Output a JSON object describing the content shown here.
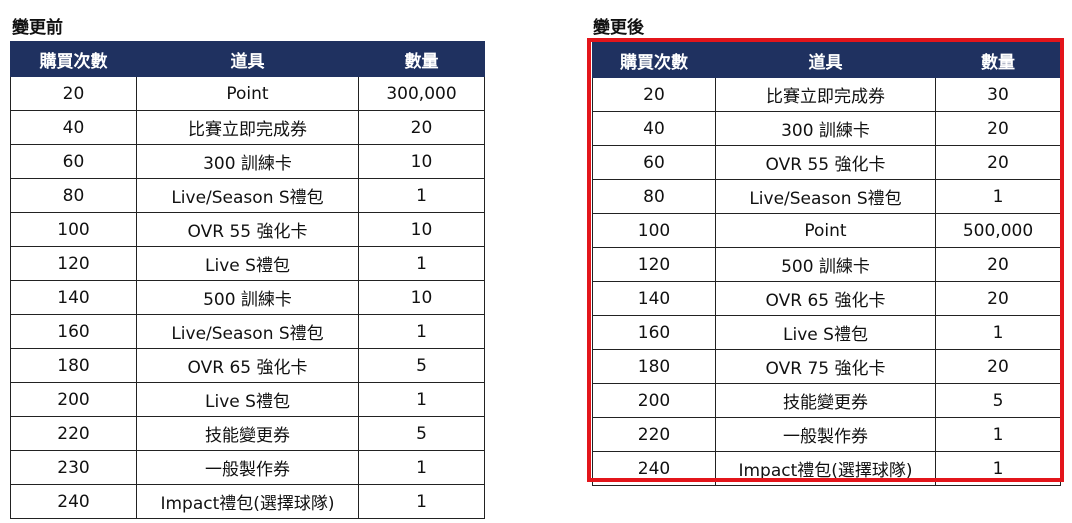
{
  "before": {
    "title": "變更前",
    "headers": [
      "購買次數",
      "道具",
      "數量"
    ],
    "rows": [
      [
        "20",
        "Point",
        "300,000"
      ],
      [
        "40",
        "比賽立即完成券",
        "20"
      ],
      [
        "60",
        "300 訓練卡",
        "10"
      ],
      [
        "80",
        "Live/Season S禮包",
        "1"
      ],
      [
        "100",
        "OVR 55 強化卡",
        "10"
      ],
      [
        "120",
        "Live S禮包",
        "1"
      ],
      [
        "140",
        "500 訓練卡",
        "10"
      ],
      [
        "160",
        "Live/Season S禮包",
        "1"
      ],
      [
        "180",
        "OVR 65 強化卡",
        "5"
      ],
      [
        "200",
        "Live S禮包",
        "1"
      ],
      [
        "220",
        "技能變更券",
        "5"
      ],
      [
        "230",
        "一般製作券",
        "1"
      ],
      [
        "240",
        "Impact禮包(選擇球隊)",
        "1"
      ]
    ]
  },
  "after": {
    "title": "變更後",
    "headers": [
      "購買次數",
      "道具",
      "數量"
    ],
    "rows": [
      [
        "20",
        "比賽立即完成券",
        "30"
      ],
      [
        "40",
        "300 訓練卡",
        "20"
      ],
      [
        "60",
        "OVR 55 強化卡",
        "20"
      ],
      [
        "80",
        "Live/Season S禮包",
        "1"
      ],
      [
        "100",
        "Point",
        "500,000"
      ],
      [
        "120",
        "500 訓練卡",
        "20"
      ],
      [
        "140",
        "OVR 65 強化卡",
        "20"
      ],
      [
        "160",
        "Live S禮包",
        "1"
      ],
      [
        "180",
        "OVR 75 強化卡",
        "20"
      ],
      [
        "200",
        "技能變更券",
        "5"
      ],
      [
        "220",
        "一般製作券",
        "1"
      ],
      [
        "240",
        "Impact禮包(選擇球隊)",
        "1"
      ]
    ]
  },
  "colors": {
    "header_bg": "#1f3160",
    "highlight_border": "#e3151b"
  }
}
